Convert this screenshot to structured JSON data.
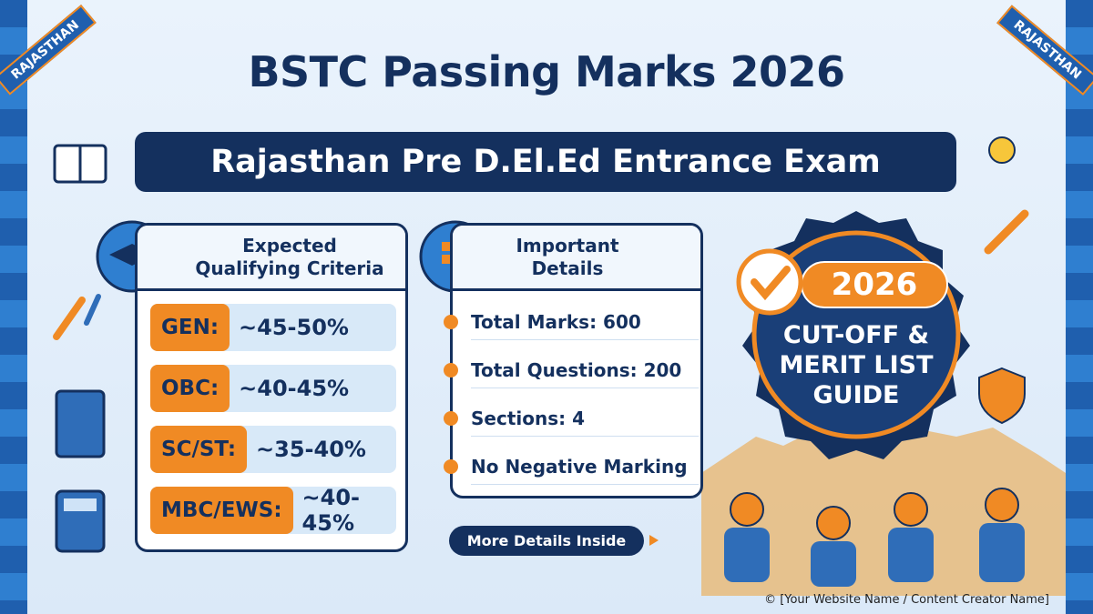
{
  "corner_labels": [
    "RAJASTHAN",
    "RAJASTHAN"
  ],
  "header": {
    "title": "BSTC Passing Marks 2026",
    "subtitle": "Rajasthan Pre D.El.Ed Entrance Exam"
  },
  "criteria_card": {
    "title_lines": [
      "Expected",
      "Qualifying Criteria"
    ],
    "rows": [
      [
        "GEN:",
        "~45-50%"
      ],
      [
        "OBC:",
        "~40-45%"
      ],
      [
        "SC/ST:",
        "~35-40%"
      ],
      [
        "MBC/EWS:",
        "~40-45%"
      ]
    ]
  },
  "details_card": {
    "title_lines": [
      "Important",
      "Details"
    ],
    "items": [
      "Total Marks: 600",
      "Total Questions: 200",
      "Sections: 4",
      "No Negative Marking"
    ]
  },
  "badge": {
    "year": "2026",
    "lines": [
      "CUT-OFF &",
      "MERIT LIST",
      "GUIDE"
    ]
  },
  "button": "More Details Inside",
  "footer": "© [Your Website Name / Content Creator Name]"
}
